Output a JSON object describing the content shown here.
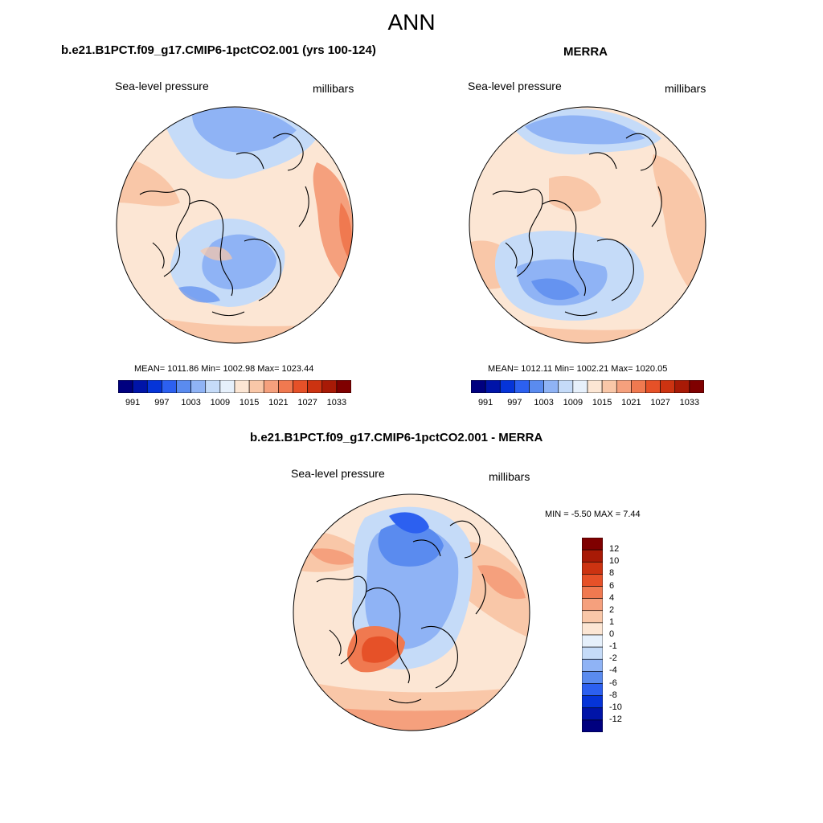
{
  "title": "ANN",
  "panels": [
    {
      "title": "b.e21.B1PCT.f09_g17.CMIP6-1pctCO2.001 (yrs 100-124)",
      "variable": "Sea-level pressure",
      "units": "millibars",
      "stats": "MEAN= 1011.86  Min= 1002.98  Max= 1023.44",
      "mean": 1011.86,
      "min": 1002.98,
      "max": 1023.44
    },
    {
      "title": "MERRA",
      "variable": "Sea-level pressure",
      "units": "millibars",
      "stats": "MEAN= 1012.11  Min= 1002.21  Max= 1020.05",
      "mean": 1012.11,
      "min": 1002.21,
      "max": 1020.05
    },
    {
      "title": "b.e21.B1PCT.f09_g17.CMIP6-1pctCO2.001 - MERRA",
      "variable": "Sea-level pressure",
      "units": "millibars",
      "stats": "MIN =  -5.50 MAX =   7.44",
      "min": -5.5,
      "max": 7.44
    }
  ],
  "colorbar_abs": {
    "orientation": "horizontal",
    "labels": [
      "991",
      "997",
      "1003",
      "1009",
      "1015",
      "1021",
      "1027",
      "1033"
    ],
    "colors": [
      "#00007f",
      "#0014a8",
      "#0534d8",
      "#2c60f0",
      "#5a8bef",
      "#8fb3f5",
      "#c5dbf8",
      "#e6f0fb",
      "#fce6d4",
      "#f9c7a8",
      "#f5a07d",
      "#f07950",
      "#e65128",
      "#cc3311",
      "#a81a06",
      "#7f0000"
    ]
  },
  "colorbar_diff": {
    "orientation": "vertical",
    "labels": [
      "12",
      "10",
      "8",
      "6",
      "4",
      "2",
      "1",
      "0",
      "-1",
      "-2",
      "-4",
      "-6",
      "-8",
      "-10",
      "-12"
    ],
    "colors": [
      "#7f0000",
      "#a81a06",
      "#cc3311",
      "#e65128",
      "#f07950",
      "#f5a07d",
      "#f9c7a8",
      "#fce6d4",
      "#e6f0fb",
      "#c5dbf8",
      "#8fb3f5",
      "#5a8bef",
      "#2c60f0",
      "#0534d8",
      "#0014a8",
      "#00007f"
    ]
  }
}
